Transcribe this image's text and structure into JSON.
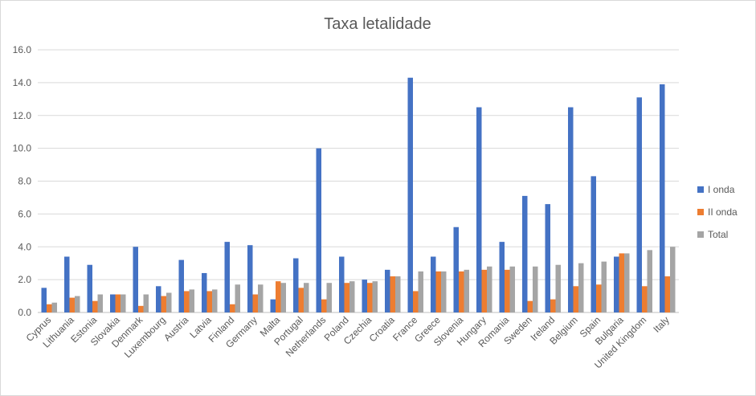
{
  "chart_data": {
    "type": "bar",
    "title": "Taxa letalidade",
    "xlabel": "",
    "ylabel": "",
    "ylim": [
      0,
      16
    ],
    "yticks": [
      "0.0",
      "2.0",
      "4.0",
      "6.0",
      "8.0",
      "10.0",
      "12.0",
      "14.0",
      "16.0"
    ],
    "grid": true,
    "legend_position": "right",
    "categories": [
      "Cyprus",
      "Lithuania",
      "Estonia",
      "Slovakia",
      "Denmark",
      "Luxembourg",
      "Austria",
      "Latvia",
      "Finland",
      "Germany",
      "Malta",
      "Portugal",
      "Netherlands",
      "Poland",
      "Czechia",
      "Croatia",
      "France",
      "Greece",
      "Slovenia",
      "Hungary",
      "Romania",
      "Sweden",
      "Ireland",
      "Belgium",
      "Spain",
      "Bulgaria",
      "United Kingdom",
      "Italy"
    ],
    "series": [
      {
        "name": "I onda",
        "color": "#4472c4",
        "values": [
          1.5,
          3.4,
          2.9,
          1.1,
          4.0,
          1.6,
          3.2,
          2.4,
          4.3,
          4.1,
          0.8,
          3.3,
          10.0,
          3.4,
          2.0,
          2.6,
          14.3,
          3.4,
          5.2,
          12.5,
          4.3,
          7.1,
          6.6,
          12.5,
          8.3,
          3.4,
          13.1,
          13.9
        ]
      },
      {
        "name": "II onda",
        "color": "#ed7d31",
        "values": [
          0.5,
          0.9,
          0.7,
          1.1,
          0.4,
          1.0,
          1.3,
          1.3,
          0.5,
          1.1,
          1.9,
          1.5,
          0.8,
          1.8,
          1.8,
          2.2,
          1.3,
          2.5,
          2.5,
          2.6,
          2.6,
          0.7,
          0.8,
          1.6,
          1.7,
          3.6,
          1.6,
          2.2
        ]
      },
      {
        "name": "Total",
        "color": "#a5a5a5",
        "values": [
          0.6,
          1.0,
          1.1,
          1.1,
          1.1,
          1.2,
          1.4,
          1.4,
          1.7,
          1.7,
          1.8,
          1.8,
          1.8,
          1.9,
          1.9,
          2.2,
          2.5,
          2.5,
          2.6,
          2.8,
          2.8,
          2.8,
          2.9,
          3.0,
          3.1,
          3.6,
          3.8,
          4.0
        ]
      }
    ]
  }
}
